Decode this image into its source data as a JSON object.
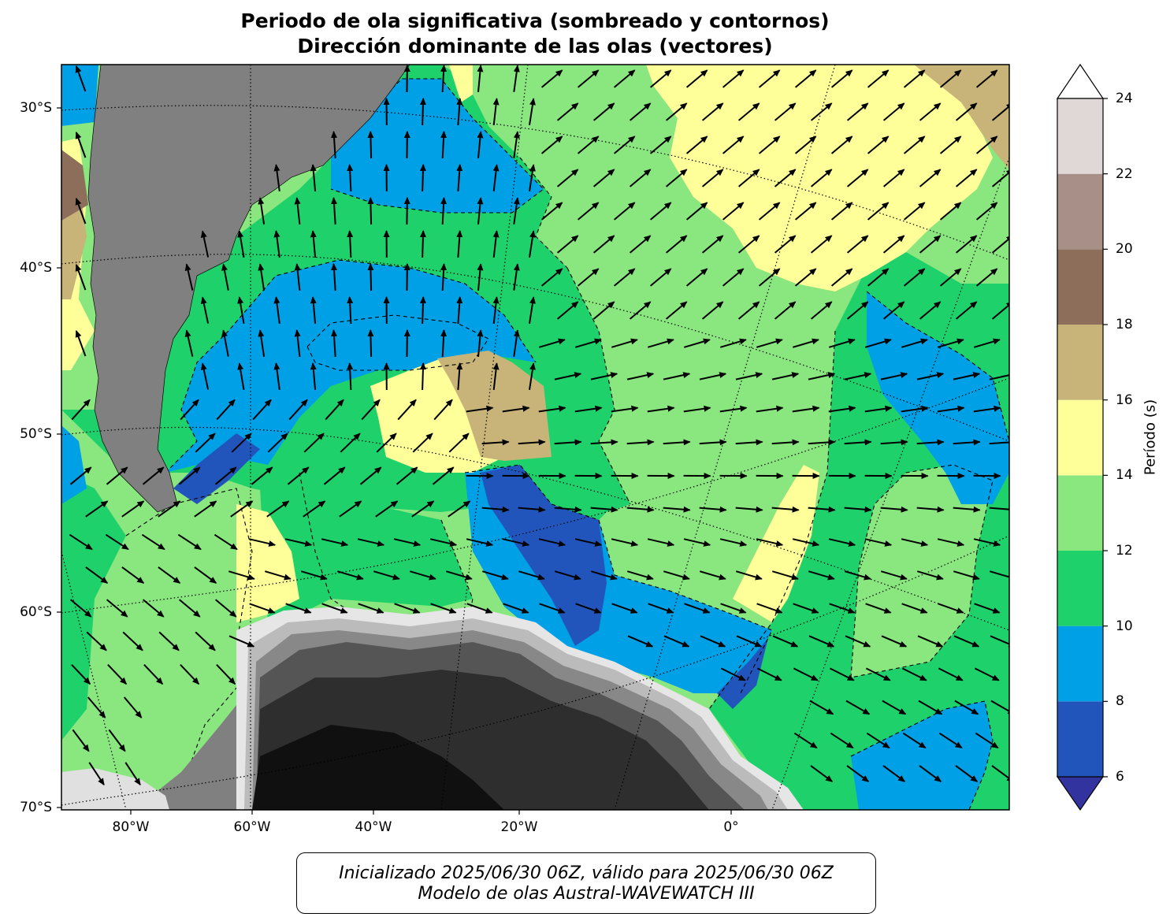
{
  "header": {
    "title_line1": "Periodo de ola significativa (sombreado y contornos)",
    "title_line2": "Dirección dominante de las olas (vectores)"
  },
  "map": {
    "latitude_labels": [
      "30°S",
      "40°S",
      "50°S",
      "60°S",
      "70°S"
    ],
    "longitude_labels": [
      "80°W",
      "60°W",
      "40°W",
      "20°W",
      "0°"
    ],
    "land_color": "#808080",
    "antarctica_colors": [
      "#101010",
      "#2e2e2e",
      "#555555",
      "#888888",
      "#bbbbbb",
      "#e6e6e6"
    ]
  },
  "colorbar": {
    "label": "Período (s)",
    "tick_labels": [
      "6",
      "8",
      "10",
      "12",
      "14",
      "16",
      "18",
      "20",
      "22",
      "24"
    ],
    "bins": [
      {
        "from": 6,
        "to": 8,
        "color": "#2255bb"
      },
      {
        "from": 8,
        "to": 10,
        "color": "#00a0e6"
      },
      {
        "from": 10,
        "to": 12,
        "color": "#1fd16b"
      },
      {
        "from": 12,
        "to": 14,
        "color": "#8ae67f"
      },
      {
        "from": 14,
        "to": 16,
        "color": "#ffff99"
      },
      {
        "from": 16,
        "to": 18,
        "color": "#c8b478"
      },
      {
        "from": 18,
        "to": 20,
        "color": "#8c6e5a"
      },
      {
        "from": 20,
        "to": 22,
        "color": "#a88f87"
      },
      {
        "from": 22,
        "to": 24,
        "color": "#e0d8d6"
      }
    ],
    "under_color": "#3333a0",
    "over_color": "#ffffff"
  },
  "footer": {
    "line1": "Inicializado 2025/06/30 06Z, válido para 2025/06/30 06Z",
    "line2": "Modelo de olas Austral-WAVEWATCH III"
  }
}
